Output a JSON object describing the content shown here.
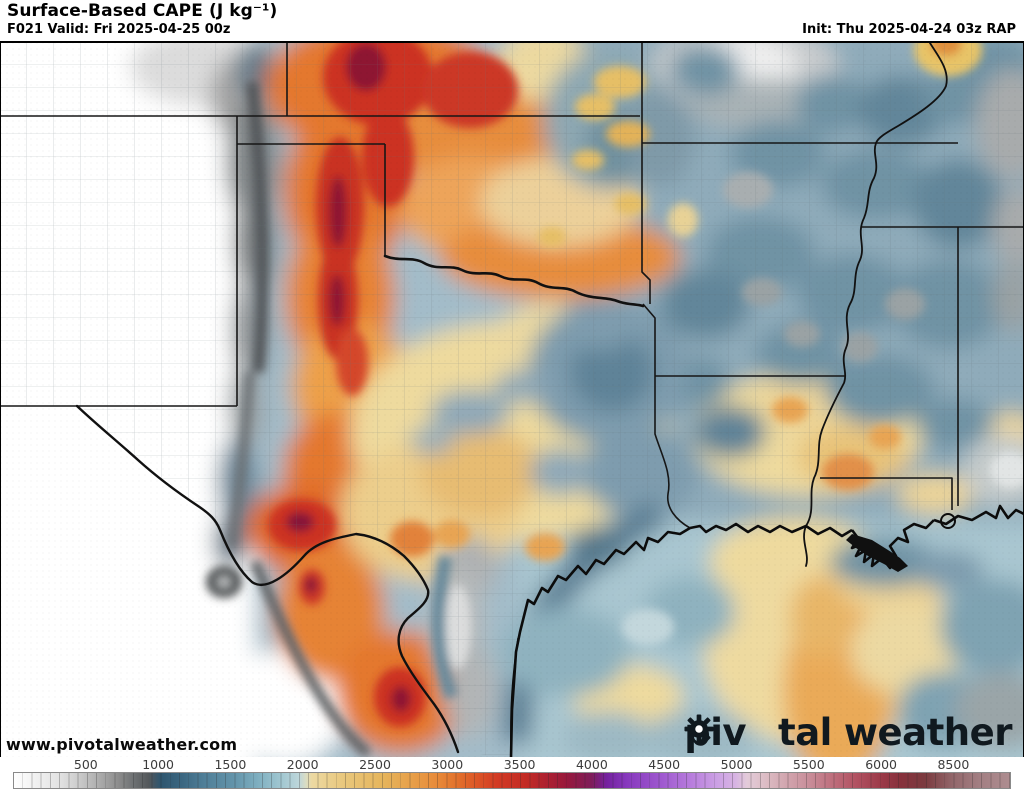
{
  "header": {
    "title": "Surface-Based CAPE (J kg⁻¹)",
    "forecast_valid": "F021 Valid: Fri 2025-04-25 00z",
    "init": "Init: Thu 2025-04-24 03z RAP"
  },
  "map": {
    "watermark": "www.pivotalweather.com",
    "logo_part1": "piv",
    "logo_part2": "tal",
    "logo_part3": "weather",
    "logo_gear_icon": "gear-icon",
    "regions_shown": "Texas, Oklahoma, New Mexico, Kansas, Missouri, Arkansas, Louisiana, Mississippi, Tennessee, Gulf of Mexico, northern Mexico"
  },
  "legend": {
    "tick_labels": [
      "500",
      "1000",
      "1500",
      "2000",
      "2500",
      "3000",
      "3500",
      "4000",
      "4500",
      "5000",
      "5500",
      "6000",
      "8500"
    ],
    "stops": [
      {
        "p": 0,
        "c": "#ffffff"
      },
      {
        "p": 2,
        "c": "#f2f2f2"
      },
      {
        "p": 4.5,
        "c": "#e3e3e3"
      },
      {
        "p": 6,
        "c": "#d2d2d2"
      },
      {
        "p": 7.3,
        "c": "#bfbfbf"
      },
      {
        "p": 9,
        "c": "#a5a5a5"
      },
      {
        "p": 10.5,
        "c": "#8c8c8c"
      },
      {
        "p": 12,
        "c": "#6e7173"
      },
      {
        "p": 13.5,
        "c": "#54585b"
      },
      {
        "p": 14.7,
        "c": "#2e556e"
      },
      {
        "p": 17,
        "c": "#3c6882"
      },
      {
        "p": 19,
        "c": "#4f7e97"
      },
      {
        "p": 22.2,
        "c": "#6495ab"
      },
      {
        "p": 24.5,
        "c": "#7fafc0"
      },
      {
        "p": 26.5,
        "c": "#9cc4cf"
      },
      {
        "p": 28.6,
        "c": "#bdd6da"
      },
      {
        "p": 29.3,
        "c": "#d9dcc4"
      },
      {
        "p": 29.9,
        "c": "#ecd9a2"
      },
      {
        "p": 33,
        "c": "#e9c87e"
      },
      {
        "p": 37,
        "c": "#e6b55c"
      },
      {
        "p": 40,
        "c": "#e79f49"
      },
      {
        "p": 42.5,
        "c": "#e88a39"
      },
      {
        "p": 44.5,
        "c": "#e2712c"
      },
      {
        "p": 46.5,
        "c": "#dc5526"
      },
      {
        "p": 48.5,
        "c": "#d23a24"
      },
      {
        "p": 51.4,
        "c": "#c22a24"
      },
      {
        "p": 53.5,
        "c": "#ad2030"
      },
      {
        "p": 55.5,
        "c": "#97183c"
      },
      {
        "p": 58,
        "c": "#7e1d5a"
      },
      {
        "p": 59.5,
        "c": "#74219f"
      },
      {
        "p": 61.5,
        "c": "#8738bd"
      },
      {
        "p": 65.2,
        "c": "#a05ad0"
      },
      {
        "p": 68,
        "c": "#b87ddd"
      },
      {
        "p": 70.5,
        "c": "#cb9fe4"
      },
      {
        "p": 72.4,
        "c": "#d7b3e3"
      },
      {
        "p": 73.6,
        "c": "#e3cbd9"
      },
      {
        "p": 75.5,
        "c": "#dcbcc4"
      },
      {
        "p": 77.5,
        "c": "#d2a6af"
      },
      {
        "p": 79.7,
        "c": "#c98f9b"
      },
      {
        "p": 82,
        "c": "#bf717f"
      },
      {
        "p": 84.5,
        "c": "#b25262"
      },
      {
        "p": 87,
        "c": "#9c3a49"
      },
      {
        "p": 89,
        "c": "#87313c"
      },
      {
        "p": 91.5,
        "c": "#7b3a3f"
      },
      {
        "p": 94.2,
        "c": "#92666a"
      },
      {
        "p": 97,
        "c": "#a37f83"
      },
      {
        "p": 100,
        "c": "#ae8d90"
      }
    ]
  },
  "palette": {
    "low_gray": "#bfbfbf",
    "mid_blue": "#6495ab",
    "pale_yellow": "#ecd9a2",
    "orange": "#e2712c",
    "red": "#c22a24",
    "maroon": "#8e1430",
    "purple": "#8738bd",
    "base_water": "#a3bcc9"
  }
}
